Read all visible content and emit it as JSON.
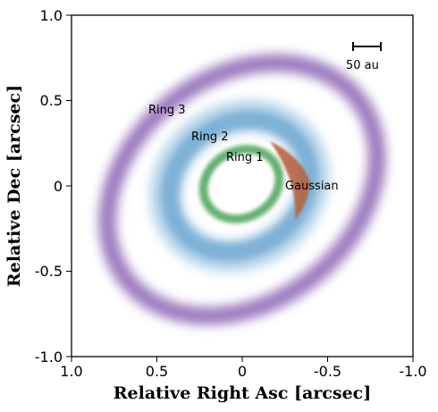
{
  "chart_data": {
    "type": "diagram",
    "xlabel": "Relative Right Asc [arcsec]",
    "ylabel": "Relative Dec [arcsec]",
    "xlim": [
      1.0,
      -1.0
    ],
    "ylim": [
      -1.0,
      1.0
    ],
    "x_ticks": [
      "1.0",
      "0.5",
      "0",
      "-0.5",
      "-1.0"
    ],
    "y_ticks": [
      "1.0",
      "0.5",
      "0",
      "-0.5",
      "-1.0"
    ],
    "scale_bar": "50 au",
    "components": [
      {
        "name": "Ring 1",
        "color": "#3f9a4f",
        "label_x": 0.0,
        "label_y": 0.17
      },
      {
        "name": "Ring 2",
        "color": "#4f8fc4",
        "label_x": 0.3,
        "label_y": 0.27
      },
      {
        "name": "Ring 3",
        "color": "#8a5fb0",
        "label_x": 0.55,
        "label_y": 0.43
      },
      {
        "name": "Gaussian",
        "color": "#b0603c",
        "label_x": -0.27,
        "label_y": 0.0
      }
    ]
  }
}
